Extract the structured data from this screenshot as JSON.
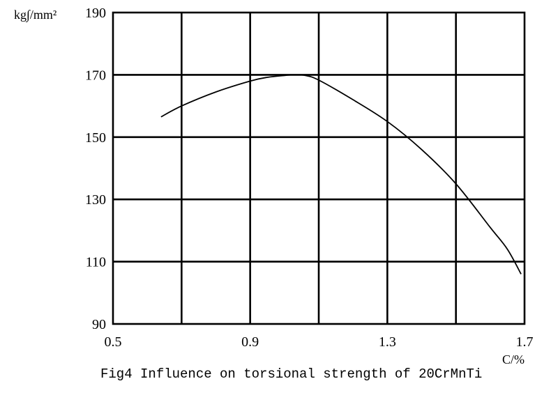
{
  "chart_data": {
    "type": "line",
    "title": "Fig4 Influence on torsional strength of 20CrMnTi",
    "xlabel": "C/%",
    "ylabel": "kg∫/mm²",
    "xlim": [
      0.5,
      1.7
    ],
    "ylim": [
      90,
      190
    ],
    "x_ticks": [
      0.5,
      0.9,
      1.3,
      1.7
    ],
    "x_tick_labels": [
      "0.5",
      "0.9",
      "1.3",
      "1.7"
    ],
    "x_grid": [
      0.5,
      0.7,
      0.9,
      1.1,
      1.3,
      1.5,
      1.7
    ],
    "y_ticks": [
      90,
      110,
      130,
      150,
      170,
      190
    ],
    "y_tick_labels": [
      "90",
      "110",
      "130",
      "150",
      "170",
      "190"
    ],
    "grid": true,
    "series": [
      {
        "x": [
          0.64,
          0.7,
          0.8,
          0.9,
          0.95,
          1.0,
          1.03,
          1.06,
          1.1,
          1.2,
          1.3,
          1.4,
          1.5,
          1.6,
          1.65,
          1.69
        ],
        "y": [
          156.5,
          160,
          164.5,
          168,
          169.2,
          169.8,
          170,
          169.8,
          168.3,
          162,
          155,
          146,
          135,
          121,
          114,
          106
        ]
      }
    ]
  }
}
